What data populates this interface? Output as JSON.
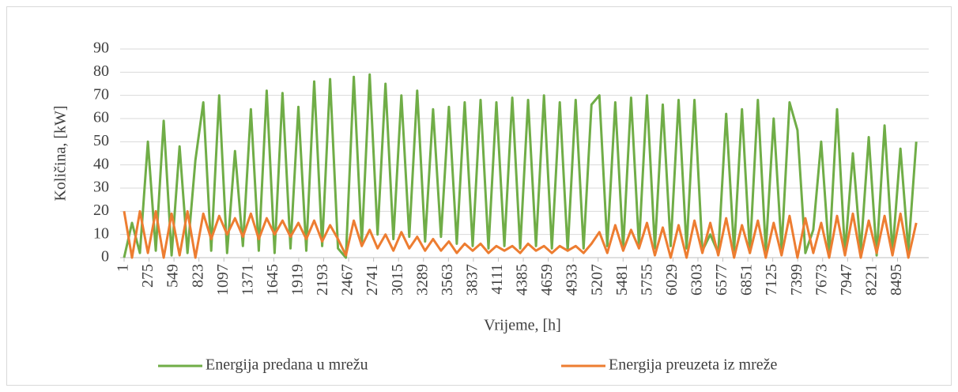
{
  "chart_data": {
    "type": "line",
    "xlabel": "Vrijeme, [h]",
    "ylabel": "Količina, [kW]",
    "xlim": [
      1,
      8760
    ],
    "xticks": [
      1,
      275,
      549,
      823,
      1097,
      1371,
      1645,
      1919,
      2193,
      2467,
      2741,
      3015,
      3289,
      3563,
      3837,
      4111,
      4385,
      4659,
      4933,
      5207,
      5481,
      5755,
      6029,
      6303,
      6577,
      6851,
      7125,
      7399,
      7673,
      7947,
      8221,
      8495
    ],
    "ylim": [
      0,
      90
    ],
    "yticks": [
      0,
      10,
      20,
      30,
      40,
      50,
      60,
      70,
      80,
      90
    ],
    "grid": true,
    "legend": "bottom",
    "x": [
      1,
      88,
      175,
      262,
      349,
      436,
      523,
      610,
      697,
      784,
      871,
      958,
      1045,
      1132,
      1219,
      1306,
      1393,
      1480,
      1567,
      1654,
      1741,
      1828,
      1915,
      2002,
      2089,
      2176,
      2263,
      2350,
      2437,
      2524,
      2611,
      2698,
      2785,
      2872,
      2959,
      3046,
      3133,
      3220,
      3307,
      3394,
      3481,
      3568,
      3655,
      3742,
      3829,
      3916,
      4003,
      4090,
      4177,
      4264,
      4351,
      4438,
      4525,
      4612,
      4699,
      4786,
      4873,
      4960,
      5047,
      5134,
      5221,
      5308,
      5395,
      5482,
      5569,
      5656,
      5743,
      5830,
      5917,
      6004,
      6091,
      6178,
      6265,
      6352,
      6439,
      6526,
      6613,
      6700,
      6787,
      6874,
      6961,
      7048,
      7135,
      7222,
      7309,
      7396,
      7483,
      7570,
      7657,
      7744,
      7831,
      7918,
      8005,
      8092,
      8179,
      8266,
      8353,
      8440,
      8527,
      8614,
      8701
    ],
    "series": [
      {
        "name": "Energija predana u mrežu",
        "color": "#70ad47",
        "values": [
          0,
          15,
          2,
          50,
          3,
          59,
          1,
          48,
          2,
          42,
          67,
          3,
          70,
          2,
          46,
          5,
          64,
          3,
          72,
          2,
          71,
          4,
          65,
          3,
          76,
          5,
          77,
          4,
          0,
          78,
          6,
          79,
          10,
          75,
          8,
          70,
          9,
          72,
          7,
          64,
          9,
          65,
          6,
          67,
          5,
          68,
          4,
          67,
          5,
          69,
          4,
          68,
          5,
          70,
          4,
          67,
          3,
          68,
          4,
          66,
          70,
          5,
          67,
          4,
          69,
          5,
          70,
          4,
          66,
          5,
          68,
          4,
          68,
          3,
          10,
          2,
          62,
          3,
          64,
          2,
          68,
          3,
          60,
          4,
          67,
          55,
          2,
          12,
          50,
          1,
          64,
          2,
          45,
          3,
          52,
          1,
          57,
          2,
          47,
          3,
          50
        ]
      },
      {
        "name": "Energija preuzeta iz mreže",
        "color": "#ed7d31",
        "values": [
          20,
          0,
          20,
          2,
          20,
          0,
          19,
          1,
          20,
          0,
          19,
          8,
          18,
          10,
          17,
          9,
          19,
          8,
          17,
          10,
          16,
          9,
          15,
          8,
          16,
          7,
          14,
          8,
          1,
          16,
          5,
          12,
          4,
          10,
          3,
          11,
          4,
          9,
          3,
          8,
          3,
          7,
          2,
          6,
          3,
          6,
          2,
          5,
          3,
          5,
          2,
          6,
          3,
          5,
          2,
          5,
          3,
          5,
          2,
          6,
          11,
          2,
          14,
          3,
          12,
          4,
          15,
          1,
          13,
          0,
          14,
          0,
          16,
          2,
          15,
          1,
          17,
          0,
          14,
          2,
          16,
          0,
          15,
          1,
          18,
          0,
          17,
          2,
          15,
          0,
          18,
          1,
          19,
          0,
          16,
          2,
          18,
          1,
          19,
          0,
          15
        ]
      }
    ]
  }
}
